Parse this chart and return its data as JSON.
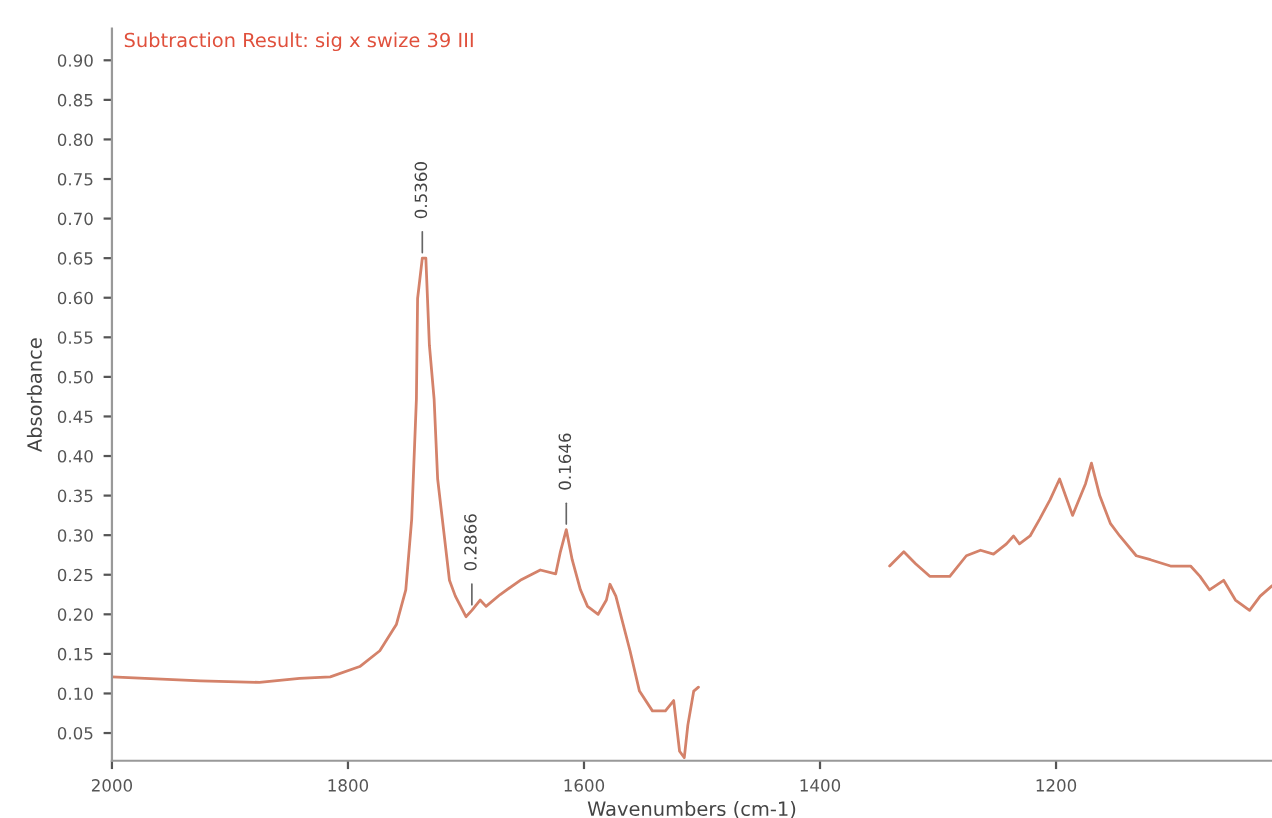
{
  "chart_data": {
    "type": "line",
    "title": "Subtraction Result: sig x swize 39 III",
    "xlabel": "Wavenumbers (cm-1)",
    "ylabel": "Absorbance",
    "x": [
      2000,
      1925,
      1875,
      1841,
      1815,
      1790,
      1773,
      1759,
      1751,
      1746,
      1742,
      1741,
      1737,
      1734,
      1731,
      1727,
      1724,
      1719,
      1714,
      1709,
      1700,
      1695,
      1688,
      1683,
      1671,
      1654,
      1637,
      1624,
      1620,
      1615,
      1610,
      1603,
      1597,
      1588,
      1581,
      1578,
      1573,
      1561,
      1553,
      1542,
      1531,
      1524,
      1519,
      1515,
      1512,
      1507,
      1503,
      1420,
      1341,
      1329,
      1319,
      1307,
      1290,
      1276,
      1264,
      1253,
      1242,
      1236,
      1231,
      1222,
      1214,
      1205,
      1197,
      1186,
      1175,
      1170,
      1163,
      1154,
      1146,
      1132,
      1120,
      1103,
      1086,
      1078,
      1070,
      1058,
      1048,
      1036,
      1027,
      1017
    ],
    "series": [
      {
        "color": "#d4826a",
        "values": [
          0.121,
          0.116,
          0.114,
          0.119,
          0.121,
          0.134,
          0.154,
          0.187,
          0.231,
          0.32,
          0.472,
          0.599,
          0.65,
          0.65,
          0.54,
          0.472,
          0.371,
          0.307,
          0.243,
          0.223,
          0.197,
          0.205,
          0.218,
          0.21,
          0.225,
          0.243,
          0.256,
          0.251,
          0.279,
          0.307,
          0.269,
          0.231,
          0.21,
          0.2,
          0.218,
          0.238,
          0.223,
          0.154,
          0.103,
          0.078,
          0.078,
          0.091,
          0.027,
          0.019,
          0.06,
          0.103,
          0.108,
          null,
          0.261,
          0.279,
          0.264,
          0.248,
          0.248,
          0.274,
          0.281,
          0.276,
          0.289,
          0.299,
          0.289,
          0.299,
          0.32,
          0.345,
          0.371,
          0.325,
          0.365,
          0.391,
          0.35,
          0.315,
          0.299,
          0.274,
          0.269,
          0.261,
          0.261,
          0.248,
          0.231,
          0.243,
          0.218,
          0.205,
          0.223,
          0.236
        ]
      }
    ],
    "annotations": [
      {
        "text": "0.5360",
        "x": 1737,
        "y": 0.65
      },
      {
        "text": "0.2866",
        "x": 1695,
        "y": 0.205
      },
      {
        "text": "0.1646",
        "x": 1615,
        "y": 0.307
      }
    ],
    "xlim": [
      2000,
      1017
    ],
    "xticks": [
      2000,
      1800,
      1600,
      1400,
      1200
    ],
    "ylim": [
      0.015,
      0.94
    ],
    "yticks": [
      {
        "value": 0.05,
        "label": "0.05"
      },
      {
        "value": 0.1,
        "label": "0.10"
      },
      {
        "value": 0.15,
        "label": "0.15"
      },
      {
        "value": 0.2,
        "label": "0.20"
      },
      {
        "value": 0.25,
        "label": "0.25"
      },
      {
        "value": 0.3,
        "label": "0.30"
      },
      {
        "value": 0.35,
        "label": "0.35"
      },
      {
        "value": 0.4,
        "label": "0.40"
      },
      {
        "value": 0.45,
        "label": "0.45"
      },
      {
        "value": 0.5,
        "label": "0.50"
      },
      {
        "value": 0.55,
        "label": "0.55"
      },
      {
        "value": 0.6,
        "label": "0.60"
      },
      {
        "value": 0.65,
        "label": "0.65"
      },
      {
        "value": 0.7,
        "label": "0.70"
      },
      {
        "value": 0.75,
        "label": "0.75"
      },
      {
        "value": 0.8,
        "label": "0.80"
      },
      {
        "value": 0.85,
        "label": "0.85"
      },
      {
        "value": 0.9,
        "label": "0.90"
      }
    ],
    "grid": false,
    "legend": false
  }
}
